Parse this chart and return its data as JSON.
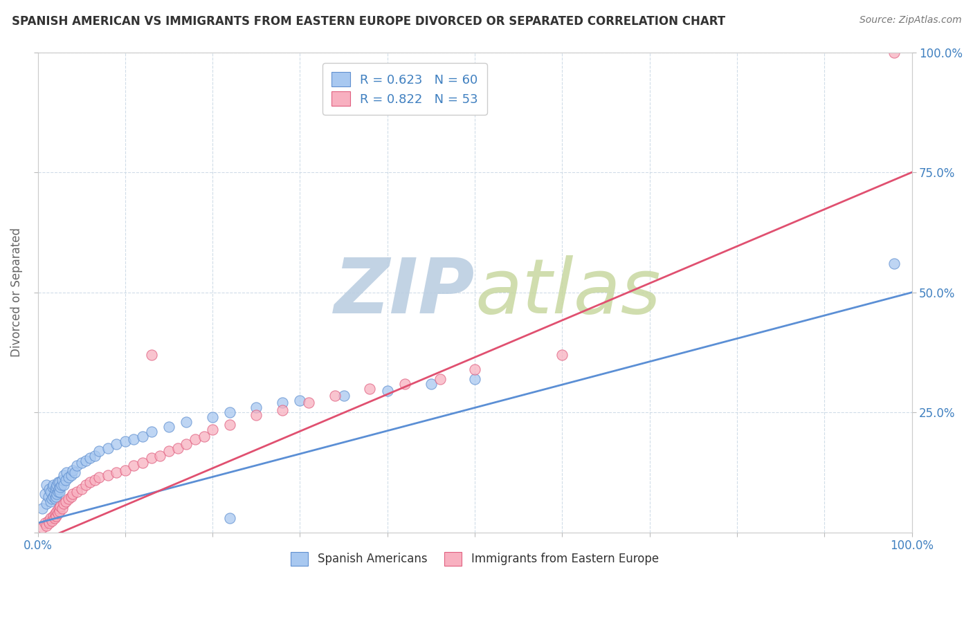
{
  "title": "SPANISH AMERICAN VS IMMIGRANTS FROM EASTERN EUROPE DIVORCED OR SEPARATED CORRELATION CHART",
  "source_text": "Source: ZipAtlas.com",
  "ylabel": "Divorced or Separated",
  "xlim": [
    0.0,
    1.0
  ],
  "ylim": [
    0.0,
    1.0
  ],
  "blue_R": 0.623,
  "blue_N": 60,
  "pink_R": 0.822,
  "pink_N": 53,
  "blue_color": "#a8c8f0",
  "pink_color": "#f8b0c0",
  "blue_edge_color": "#6090d0",
  "pink_edge_color": "#e06080",
  "blue_line_color": "#5b8fd5",
  "pink_line_color": "#e05070",
  "watermark_zip_color": "#b8cce0",
  "watermark_atlas_color": "#c8d8a0",
  "background_color": "#ffffff",
  "grid_color": "#d0dce8",
  "title_color": "#333333",
  "tick_color": "#4080c0",
  "source_color": "#777777",
  "blue_intercept": 0.02,
  "blue_slope": 0.48,
  "pink_intercept": -0.02,
  "pink_slope": 0.77,
  "blue_scatter_x": [
    0.005,
    0.008,
    0.01,
    0.01,
    0.012,
    0.013,
    0.015,
    0.015,
    0.016,
    0.017,
    0.018,
    0.018,
    0.019,
    0.02,
    0.02,
    0.021,
    0.021,
    0.022,
    0.022,
    0.023,
    0.023,
    0.024,
    0.025,
    0.025,
    0.026,
    0.027,
    0.028,
    0.03,
    0.03,
    0.032,
    0.033,
    0.035,
    0.038,
    0.04,
    0.042,
    0.045,
    0.05,
    0.055,
    0.06,
    0.065,
    0.07,
    0.08,
    0.09,
    0.1,
    0.11,
    0.12,
    0.13,
    0.15,
    0.17,
    0.2,
    0.22,
    0.25,
    0.28,
    0.3,
    0.35,
    0.4,
    0.45,
    0.5,
    0.98,
    0.22
  ],
  "blue_scatter_y": [
    0.05,
    0.08,
    0.06,
    0.1,
    0.075,
    0.09,
    0.065,
    0.085,
    0.07,
    0.095,
    0.075,
    0.1,
    0.08,
    0.07,
    0.09,
    0.075,
    0.095,
    0.08,
    0.1,
    0.085,
    0.105,
    0.09,
    0.085,
    0.105,
    0.095,
    0.1,
    0.11,
    0.1,
    0.12,
    0.11,
    0.125,
    0.115,
    0.12,
    0.13,
    0.125,
    0.14,
    0.145,
    0.15,
    0.155,
    0.16,
    0.17,
    0.175,
    0.185,
    0.19,
    0.195,
    0.2,
    0.21,
    0.22,
    0.23,
    0.24,
    0.25,
    0.26,
    0.27,
    0.275,
    0.285,
    0.295,
    0.31,
    0.32,
    0.56,
    0.03
  ],
  "pink_scatter_x": [
    0.005,
    0.008,
    0.01,
    0.012,
    0.013,
    0.015,
    0.016,
    0.018,
    0.019,
    0.02,
    0.021,
    0.022,
    0.023,
    0.024,
    0.025,
    0.026,
    0.028,
    0.03,
    0.032,
    0.035,
    0.038,
    0.04,
    0.045,
    0.05,
    0.055,
    0.06,
    0.065,
    0.07,
    0.08,
    0.09,
    0.1,
    0.11,
    0.12,
    0.13,
    0.14,
    0.15,
    0.16,
    0.17,
    0.18,
    0.19,
    0.2,
    0.22,
    0.25,
    0.28,
    0.31,
    0.34,
    0.38,
    0.42,
    0.46,
    0.5,
    0.6,
    0.98,
    0.13
  ],
  "pink_scatter_y": [
    0.01,
    0.02,
    0.015,
    0.025,
    0.02,
    0.03,
    0.025,
    0.035,
    0.03,
    0.04,
    0.035,
    0.045,
    0.04,
    0.05,
    0.045,
    0.055,
    0.05,
    0.06,
    0.065,
    0.07,
    0.075,
    0.08,
    0.085,
    0.09,
    0.1,
    0.105,
    0.11,
    0.115,
    0.12,
    0.125,
    0.13,
    0.14,
    0.145,
    0.155,
    0.16,
    0.17,
    0.175,
    0.185,
    0.195,
    0.2,
    0.215,
    0.225,
    0.245,
    0.255,
    0.27,
    0.285,
    0.3,
    0.31,
    0.32,
    0.34,
    0.37,
    1.0,
    0.37
  ]
}
